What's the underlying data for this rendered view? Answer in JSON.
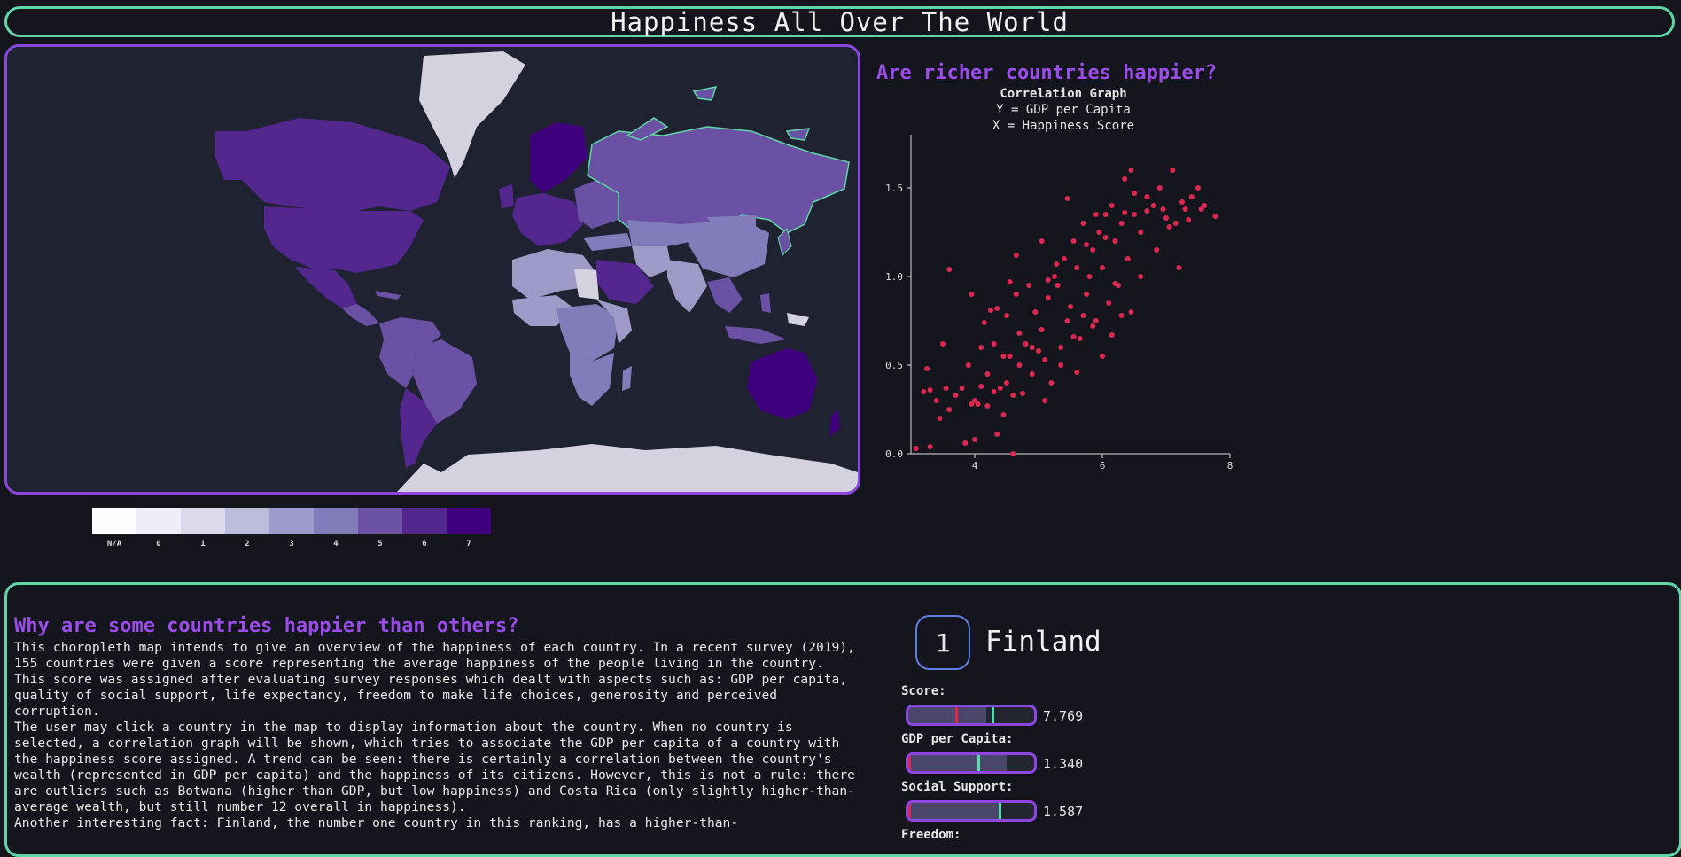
{
  "header": {
    "title": "Happiness All Over The World"
  },
  "map": {
    "colors": {
      "na": "#d5d2df",
      "ocean": "#1f2230",
      "border": "#5fd6a8",
      "panel_border": "#8b47e0"
    },
    "legend": {
      "labels": [
        "N/A",
        "0",
        "1",
        "2",
        "3",
        "4",
        "5",
        "6",
        "7"
      ],
      "colors": [
        "#fcfbfd",
        "#efedf5",
        "#dadaeb",
        "#bcbddc",
        "#9e9ac8",
        "#807dba",
        "#6a51a3",
        "#54278f",
        "#3f007d"
      ]
    }
  },
  "correlation": {
    "title": "Are richer countries happier?",
    "subtitle": "Correlation Graph",
    "y_label": "Y = GDP per Capita",
    "x_label": "X = Happiness Score"
  },
  "chart_data": {
    "type": "scatter",
    "title": "Correlation Graph",
    "xlabel": "X = Happiness Score",
    "ylabel": "Y = GDP per Capita",
    "xlim": [
      3,
      8
    ],
    "ylim": [
      0,
      1.8
    ],
    "x_ticks": [
      "4",
      "6",
      "8"
    ],
    "y_ticks": [
      "0.0",
      "0.5",
      "1.0",
      "1.5"
    ],
    "point_color": "#dc2850",
    "points": [
      [
        3.08,
        0.03
      ],
      [
        3.2,
        0.35
      ],
      [
        3.25,
        0.48
      ],
      [
        3.3,
        0.36
      ],
      [
        3.4,
        0.3
      ],
      [
        3.45,
        0.2
      ],
      [
        3.5,
        0.62
      ],
      [
        3.55,
        0.37
      ],
      [
        3.6,
        0.25
      ],
      [
        3.7,
        0.33
      ],
      [
        3.8,
        0.37
      ],
      [
        3.85,
        0.06
      ],
      [
        3.9,
        0.5
      ],
      [
        3.95,
        0.28
      ],
      [
        4.0,
        0.08
      ],
      [
        4.05,
        0.28
      ],
      [
        4.1,
        0.38
      ],
      [
        4.1,
        0.6
      ],
      [
        4.2,
        0.27
      ],
      [
        4.2,
        0.45
      ],
      [
        4.3,
        0.35
      ],
      [
        4.3,
        0.62
      ],
      [
        4.35,
        0.11
      ],
      [
        4.4,
        0.37
      ],
      [
        4.45,
        0.22
      ],
      [
        4.45,
        0.55
      ],
      [
        4.5,
        0.4
      ],
      [
        4.5,
        0.78
      ],
      [
        4.6,
        0.0
      ],
      [
        4.6,
        0.33
      ],
      [
        4.65,
        0.9
      ],
      [
        4.7,
        0.5
      ],
      [
        4.7,
        0.68
      ],
      [
        4.8,
        0.62
      ],
      [
        4.85,
        0.95
      ],
      [
        4.9,
        0.45
      ],
      [
        4.95,
        0.8
      ],
      [
        5.0,
        0.58
      ],
      [
        5.05,
        0.7
      ],
      [
        5.1,
        0.3
      ],
      [
        5.15,
        0.88
      ],
      [
        5.2,
        0.4
      ],
      [
        5.25,
        1.0
      ],
      [
        5.3,
        0.95
      ],
      [
        5.35,
        0.6
      ],
      [
        5.4,
        1.1
      ],
      [
        5.45,
        0.75
      ],
      [
        5.5,
        0.83
      ],
      [
        5.55,
        1.2
      ],
      [
        5.6,
        1.05
      ],
      [
        5.65,
        0.65
      ],
      [
        5.7,
        1.3
      ],
      [
        5.75,
        0.9
      ],
      [
        5.8,
        1.0
      ],
      [
        5.85,
        1.15
      ],
      [
        5.9,
        0.75
      ],
      [
        5.95,
        1.25
      ],
      [
        6.0,
        1.05
      ],
      [
        6.05,
        1.35
      ],
      [
        6.1,
        0.85
      ],
      [
        6.15,
        1.4
      ],
      [
        6.2,
        1.2
      ],
      [
        6.25,
        0.95
      ],
      [
        6.3,
        1.3
      ],
      [
        6.35,
        1.55
      ],
      [
        6.4,
        1.1
      ],
      [
        6.45,
        1.6
      ],
      [
        6.5,
        1.35
      ],
      [
        6.6,
        1.25
      ],
      [
        6.7,
        1.45
      ],
      [
        6.8,
        1.4
      ],
      [
        6.9,
        1.5
      ],
      [
        7.0,
        1.33
      ],
      [
        7.1,
        1.6
      ],
      [
        7.2,
        1.05
      ],
      [
        7.25,
        1.42
      ],
      [
        7.3,
        1.38
      ],
      [
        7.4,
        1.45
      ],
      [
        7.5,
        1.5
      ],
      [
        7.6,
        1.4
      ],
      [
        7.77,
        1.34
      ],
      [
        3.3,
        0.04
      ],
      [
        3.6,
        1.04
      ],
      [
        3.95,
        0.9
      ],
      [
        4.25,
        0.81
      ],
      [
        4.55,
        0.97
      ],
      [
        4.65,
        1.12
      ],
      [
        5.05,
        1.2
      ],
      [
        5.15,
        0.98
      ],
      [
        5.28,
        1.07
      ],
      [
        5.45,
        1.44
      ],
      [
        5.6,
        0.46
      ],
      [
        5.75,
        1.18
      ],
      [
        5.9,
        1.35
      ],
      [
        6.05,
        1.22
      ],
      [
        6.2,
        0.96
      ],
      [
        6.35,
        1.36
      ],
      [
        6.5,
        1.47
      ],
      [
        6.7,
        1.37
      ],
      [
        6.95,
        1.38
      ],
      [
        7.15,
        1.3
      ],
      [
        4.0,
        0.3
      ],
      [
        4.15,
        0.74
      ],
      [
        4.35,
        0.82
      ],
      [
        4.55,
        0.55
      ],
      [
        4.75,
        0.34
      ],
      [
        4.9,
        0.6
      ],
      [
        5.1,
        0.53
      ],
      [
        5.35,
        0.5
      ],
      [
        5.55,
        0.66
      ],
      [
        5.7,
        0.78
      ],
      [
        5.85,
        0.72
      ],
      [
        6.0,
        0.55
      ],
      [
        6.15,
        0.67
      ],
      [
        6.3,
        0.78
      ],
      [
        6.45,
        0.8
      ],
      [
        6.6,
        1.0
      ],
      [
        6.85,
        1.15
      ],
      [
        7.05,
        1.28
      ],
      [
        7.35,
        1.32
      ],
      [
        7.55,
        1.38
      ]
    ]
  },
  "why": {
    "title": "Why are some countries happier than others?",
    "paragraphs": [
      "This choropleth map intends to give an overview of the happiness of each country. In a recent survey (2019), 155 countries were given a score representing the average happiness of the people living in the country. This score was assigned after evaluating survey responses which dealt with aspects such as: GDP per capita, quality of social support, life expectancy, freedom to make life choices, generosity and perceived corruption.",
      "The user may click a country in the map to display information about the country. When no country is selected, a correlation graph will be shown, which tries to associate the GDP per capita of a country with the happiness score assigned. A trend can be seen: there is certainly a correlation between the country's wealth (represented in GDP per capita) and the happiness of its citizens. However, this is not a rule: there are outliers such as Botwana (higher than GDP, but low happiness) and Costa Rica (only slightly higher-than-average wealth, but still number 12 overall in happiness).",
      "Another interesting fact: Finland, the number one country in this ranking, has a higher-than-"
    ]
  },
  "country": {
    "rank": "1",
    "name": "Finland",
    "metrics": [
      {
        "label": "Score:",
        "value": "7.769",
        "fill": 0.62,
        "avg": 0.37,
        "mark": 0.66
      },
      {
        "label": "GDP per Capita:",
        "value": "1.340",
        "fill": 0.78,
        "avg": 0.0,
        "mark": 0.55
      },
      {
        "label": "Social Support:",
        "value": "1.587",
        "fill": 0.72,
        "avg": 0.0,
        "mark": 0.72
      },
      {
        "label": "Freedom:"
      }
    ]
  }
}
